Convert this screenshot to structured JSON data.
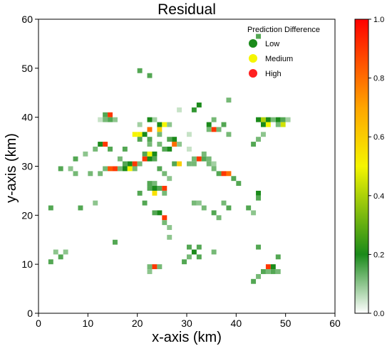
{
  "chart_data": {
    "type": "heatmap",
    "title": "Residual",
    "xlabel": "x-axis (km)",
    "ylabel": "y-axis (km)",
    "xlim": [
      0,
      60
    ],
    "ylim": [
      0,
      60
    ],
    "xticks": [
      "0",
      "10",
      "20",
      "30",
      "40",
      "50",
      "60"
    ],
    "yticks": [
      "0",
      "10",
      "20",
      "30",
      "40",
      "50",
      "60"
    ],
    "grid": false,
    "legend": {
      "title": "Prediction Difference",
      "placement": "top-right",
      "items": [
        {
          "label": "Low",
          "color": "#1a8a1a"
        },
        {
          "label": "Medium",
          "color": "#f5f500"
        },
        {
          "label": "High",
          "color": "#ff2020"
        }
      ]
    },
    "colorbar": {
      "range": [
        0.0,
        1.0
      ],
      "ticks": [
        "0.0",
        "0.2",
        "0.4",
        "0.6",
        "0.8",
        "1.0"
      ],
      "stops": [
        {
          "value": 0.0,
          "color": "#ffffff"
        },
        {
          "value": 0.2,
          "color": "#1a8a1a"
        },
        {
          "value": 0.5,
          "color": "#f5f500"
        },
        {
          "value": 0.7,
          "color": "#ffa500"
        },
        {
          "value": 1.0,
          "color": "#ff0000"
        }
      ]
    },
    "cells": [
      [
        44,
        56,
        0.15
      ],
      [
        20,
        49,
        0.15
      ],
      [
        22,
        48,
        0.15
      ],
      [
        38,
        43,
        0.12
      ],
      [
        32,
        42,
        0.2
      ],
      [
        31,
        41,
        0.18
      ],
      [
        28,
        41,
        0.05
      ],
      [
        13,
        40,
        0.15
      ],
      [
        14,
        40,
        0.9
      ],
      [
        12,
        39,
        0.05
      ],
      [
        13,
        39,
        0.12
      ],
      [
        14,
        39,
        0.15
      ],
      [
        15,
        39,
        0.1
      ],
      [
        23,
        39,
        0.08
      ],
      [
        24,
        38,
        0.2
      ],
      [
        22,
        39,
        0.2
      ],
      [
        35,
        39,
        0.12
      ],
      [
        34,
        38,
        0.2
      ],
      [
        37,
        38,
        0.15
      ],
      [
        44,
        39,
        0.2
      ],
      [
        45,
        39,
        0.4
      ],
      [
        46,
        39,
        0.2
      ],
      [
        47,
        39,
        0.12
      ],
      [
        48,
        39,
        0.2
      ],
      [
        49,
        39,
        0.15
      ],
      [
        50,
        39,
        0.08
      ],
      [
        45,
        38,
        0.2
      ],
      [
        46,
        38,
        0.5
      ],
      [
        49,
        38,
        0.45
      ],
      [
        48,
        38,
        0.12
      ],
      [
        20,
        38,
        0.08
      ],
      [
        25,
        38,
        0.5
      ],
      [
        26,
        38,
        0.1
      ],
      [
        22,
        37,
        0.8
      ],
      [
        24,
        37,
        0.6
      ],
      [
        34,
        37,
        0.12
      ],
      [
        35,
        37,
        0.9
      ],
      [
        36,
        37,
        0.12
      ],
      [
        19,
        36,
        0.5
      ],
      [
        20,
        36,
        0.5
      ],
      [
        21,
        36,
        0.2
      ],
      [
        22,
        35,
        0.15
      ],
      [
        24,
        36,
        0.12
      ],
      [
        30,
        36,
        0.05
      ],
      [
        38,
        36,
        0.12
      ],
      [
        20,
        35,
        0.15
      ],
      [
        26,
        35,
        0.15
      ],
      [
        27,
        35,
        0.2
      ],
      [
        22,
        34,
        0.12
      ],
      [
        27,
        34,
        0.8
      ],
      [
        28,
        34,
        0.1
      ],
      [
        44,
        35,
        0.12
      ],
      [
        45,
        36,
        0.1
      ],
      [
        12,
        34,
        0.2
      ],
      [
        13,
        34,
        0.9
      ],
      [
        14,
        33,
        0.15
      ],
      [
        11,
        33,
        0.12
      ],
      [
        24,
        34,
        0.12
      ],
      [
        25,
        33,
        0.15
      ],
      [
        26,
        33,
        0.2
      ],
      [
        30,
        33,
        0.05
      ],
      [
        43,
        34,
        0.15
      ],
      [
        17,
        33,
        0.15
      ],
      [
        21,
        32,
        0.15
      ],
      [
        22,
        32,
        0.5
      ],
      [
        23,
        32,
        0.2
      ],
      [
        21,
        31,
        0.9
      ],
      [
        22,
        31,
        0.2
      ],
      [
        23,
        31,
        0.15
      ],
      [
        33,
        32,
        0.12
      ],
      [
        31,
        31,
        0.12
      ],
      [
        32,
        31,
        0.9
      ],
      [
        33,
        31,
        0.15
      ],
      [
        34,
        31,
        0.12
      ],
      [
        7,
        31,
        0.15
      ],
      [
        9,
        32,
        0.1
      ],
      [
        16,
        31,
        0.12
      ],
      [
        17,
        30,
        0.15
      ],
      [
        18,
        30,
        0.2
      ],
      [
        19,
        30,
        0.9
      ],
      [
        20,
        30,
        0.12
      ],
      [
        27,
        30,
        0.15
      ],
      [
        28,
        30,
        0.6
      ],
      [
        30,
        30,
        0.12
      ],
      [
        31,
        30,
        0.12
      ],
      [
        13,
        29,
        0.12
      ],
      [
        14,
        29,
        0.85
      ],
      [
        15,
        29,
        0.9
      ],
      [
        16,
        29,
        0.12
      ],
      [
        17,
        29,
        0.2
      ],
      [
        18,
        29,
        0.5
      ],
      [
        19,
        29,
        0.12
      ],
      [
        24,
        29,
        0.15
      ],
      [
        35,
        29,
        0.12
      ],
      [
        36,
        28,
        0.15
      ],
      [
        37,
        28,
        0.9
      ],
      [
        38,
        28,
        0.8
      ],
      [
        34,
        30,
        0.12
      ],
      [
        35,
        30,
        0.08
      ],
      [
        39,
        27,
        0.15
      ],
      [
        40,
        26,
        0.15
      ],
      [
        6,
        29,
        0.1
      ],
      [
        7,
        28,
        0.12
      ],
      [
        10,
        28,
        0.12
      ],
      [
        12,
        28,
        0.12
      ],
      [
        25,
        28,
        0.12
      ],
      [
        26,
        27,
        0.1
      ],
      [
        22,
        26,
        0.15
      ],
      [
        23,
        26,
        0.12
      ],
      [
        24,
        25,
        0.15
      ],
      [
        25,
        25,
        0.9
      ],
      [
        22,
        25,
        0.15
      ],
      [
        23,
        24,
        0.55
      ],
      [
        23,
        25,
        0.2
      ],
      [
        20,
        24,
        0.15
      ],
      [
        25,
        24,
        0.12
      ],
      [
        44,
        24,
        0.2
      ],
      [
        44,
        23,
        0.15
      ],
      [
        4,
        29,
        0.15
      ],
      [
        2,
        21,
        0.15
      ],
      [
        8,
        21,
        0.15
      ],
      [
        11,
        22,
        0.1
      ],
      [
        21,
        22,
        0.15
      ],
      [
        31,
        22,
        0.12
      ],
      [
        32,
        22,
        0.1
      ],
      [
        33,
        21,
        0.12
      ],
      [
        37,
        22,
        0.12
      ],
      [
        38,
        21,
        0.15
      ],
      [
        42,
        21,
        0.15
      ],
      [
        43,
        20,
        0.1
      ],
      [
        23,
        20,
        0.15
      ],
      [
        24,
        20,
        0.2
      ],
      [
        25,
        19,
        0.9
      ],
      [
        25,
        18,
        0.12
      ],
      [
        26,
        17,
        0.1
      ],
      [
        35,
        20,
        0.15
      ],
      [
        36,
        19,
        0.12
      ],
      [
        15,
        14,
        0.15
      ],
      [
        26,
        15,
        0.1
      ],
      [
        35,
        12,
        0.12
      ],
      [
        32,
        11,
        0.15
      ],
      [
        30,
        13,
        0.15
      ],
      [
        31,
        12,
        0.2
      ],
      [
        32,
        13,
        0.15
      ],
      [
        30,
        11,
        0.12
      ],
      [
        44,
        13,
        0.15
      ],
      [
        48,
        11,
        0.15
      ],
      [
        29,
        10,
        0.15
      ],
      [
        3,
        12,
        0.1
      ],
      [
        4,
        11,
        0.15
      ],
      [
        5,
        12,
        0.1
      ],
      [
        2,
        10,
        0.15
      ],
      [
        23,
        9,
        0.9
      ],
      [
        22,
        9,
        0.12
      ],
      [
        22,
        8,
        0.1
      ],
      [
        24,
        9,
        0.12
      ],
      [
        46,
        9,
        0.9
      ],
      [
        47,
        9,
        0.2
      ],
      [
        47,
        8,
        0.15
      ],
      [
        45,
        8,
        0.15
      ],
      [
        44,
        7,
        0.12
      ],
      [
        43,
        6,
        0.15
      ],
      [
        48,
        8,
        0.12
      ],
      [
        46,
        8,
        0.12
      ]
    ]
  }
}
